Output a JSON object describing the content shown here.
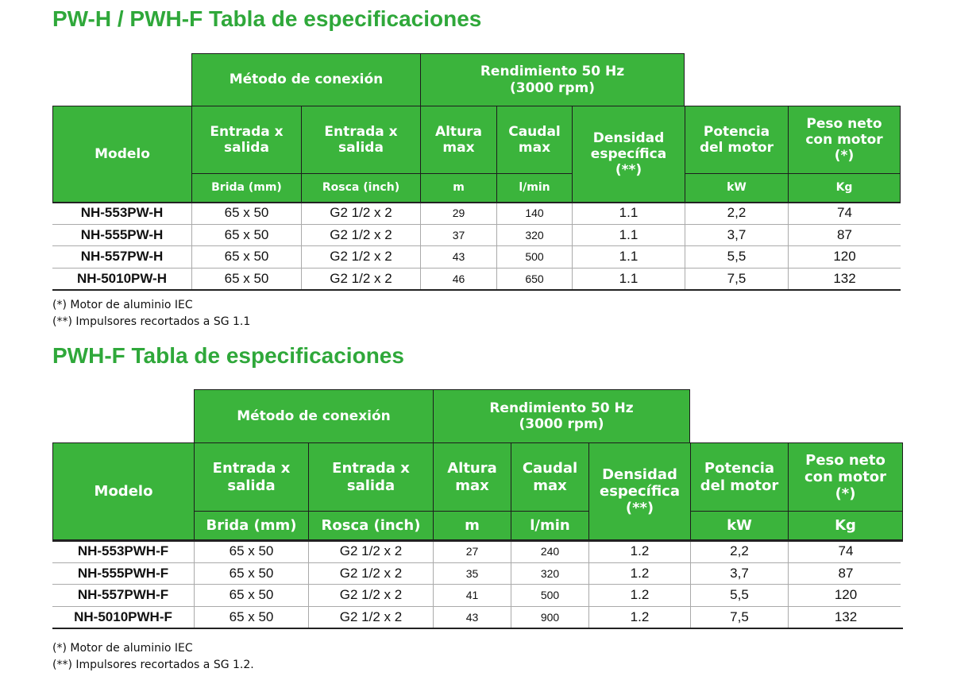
{
  "tables": [
    {
      "title": "PW-H / PWH-F Tabla de especificaciones",
      "group_connection": "Método de conexión",
      "group_performance": "Rendimiento 50 Hz\n(3000 rpm)",
      "headers": {
        "model": "Modelo",
        "inlet_outlet_1": "Entrada x\nsalida",
        "inlet_outlet_2": "Entrada x\nsalida",
        "height": "Altura\nmax",
        "flow": "Caudal\nmax",
        "density": "Densidad\nespecífica\n(**)",
        "power": "Potencia\ndel motor",
        "weight": "Peso neto\ncon motor\n(*)"
      },
      "units": {
        "flange": "Brida (mm)",
        "thread": "Rosca (inch)",
        "height": "m",
        "flow": "l/min",
        "power": "kW",
        "weight": "Kg"
      },
      "rows": [
        [
          "NH-553PW-H",
          "65 x 50",
          "G2 1/2 x 2",
          "29",
          "140",
          "1.1",
          "2,2",
          "74"
        ],
        [
          "NH-555PW-H",
          "65 x 50",
          "G2 1/2 x 2",
          "37",
          "320",
          "1.1",
          "3,7",
          "87"
        ],
        [
          "NH-557PW-H",
          "65 x 50",
          "G2 1/2 x 2",
          "43",
          "500",
          "1.1",
          "5,5",
          "120"
        ],
        [
          "NH-5010PW-H",
          "65 x 50",
          "G2 1/2 x 2",
          "46",
          "650",
          "1.1",
          "7,5",
          "132"
        ]
      ],
      "notes": [
        "(*) Motor de aluminio IEC",
        "(**) Impulsores recortados a SG 1.1"
      ]
    },
    {
      "title": "PWH-F Tabla de especificaciones",
      "group_connection": "Método de conexión",
      "group_performance": "Rendimiento 50 Hz\n(3000 rpm)",
      "headers": {
        "model": "Modelo",
        "inlet_outlet_1": "Entrada x\nsalida",
        "inlet_outlet_2": "Entrada x\nsalida",
        "height": "Altura\nmax",
        "flow": "Caudal\nmax",
        "density": "Densidad\nespecífica\n(**)",
        "power": "Potencia\ndel motor",
        "weight": "Peso neto\ncon motor\n(*)"
      },
      "units": {
        "flange": "Brida (mm)",
        "thread": "Rosca (inch)",
        "height": "m",
        "flow": "l/min",
        "power": "kW",
        "weight": "Kg"
      },
      "rows": [
        [
          "NH-553PWH-F",
          "65 x 50",
          "G2 1/2 x 2",
          "27",
          "240",
          "1.2",
          "2,2",
          "74"
        ],
        [
          "NH-555PWH-F",
          "65 x 50",
          "G2 1/2 x 2",
          "35",
          "320",
          "1.2",
          "3,7",
          "87"
        ],
        [
          "NH-557PWH-F",
          "65 x 50",
          "G2 1/2 x 2",
          "41",
          "500",
          "1.2",
          "5,5",
          "120"
        ],
        [
          "NH-5010PWH-F",
          "65 x 50",
          "G2 1/2 x 2",
          "43",
          "900",
          "1.2",
          "7,5",
          "132"
        ]
      ],
      "notes": [
        "(*) Motor de aluminio IEC",
        "(**) Impulsores recortados a SG 1.2."
      ]
    }
  ],
  "colors": {
    "title_green": "#2fa83a",
    "header_green": "#3bb43c",
    "header_text": "#ffffff"
  }
}
